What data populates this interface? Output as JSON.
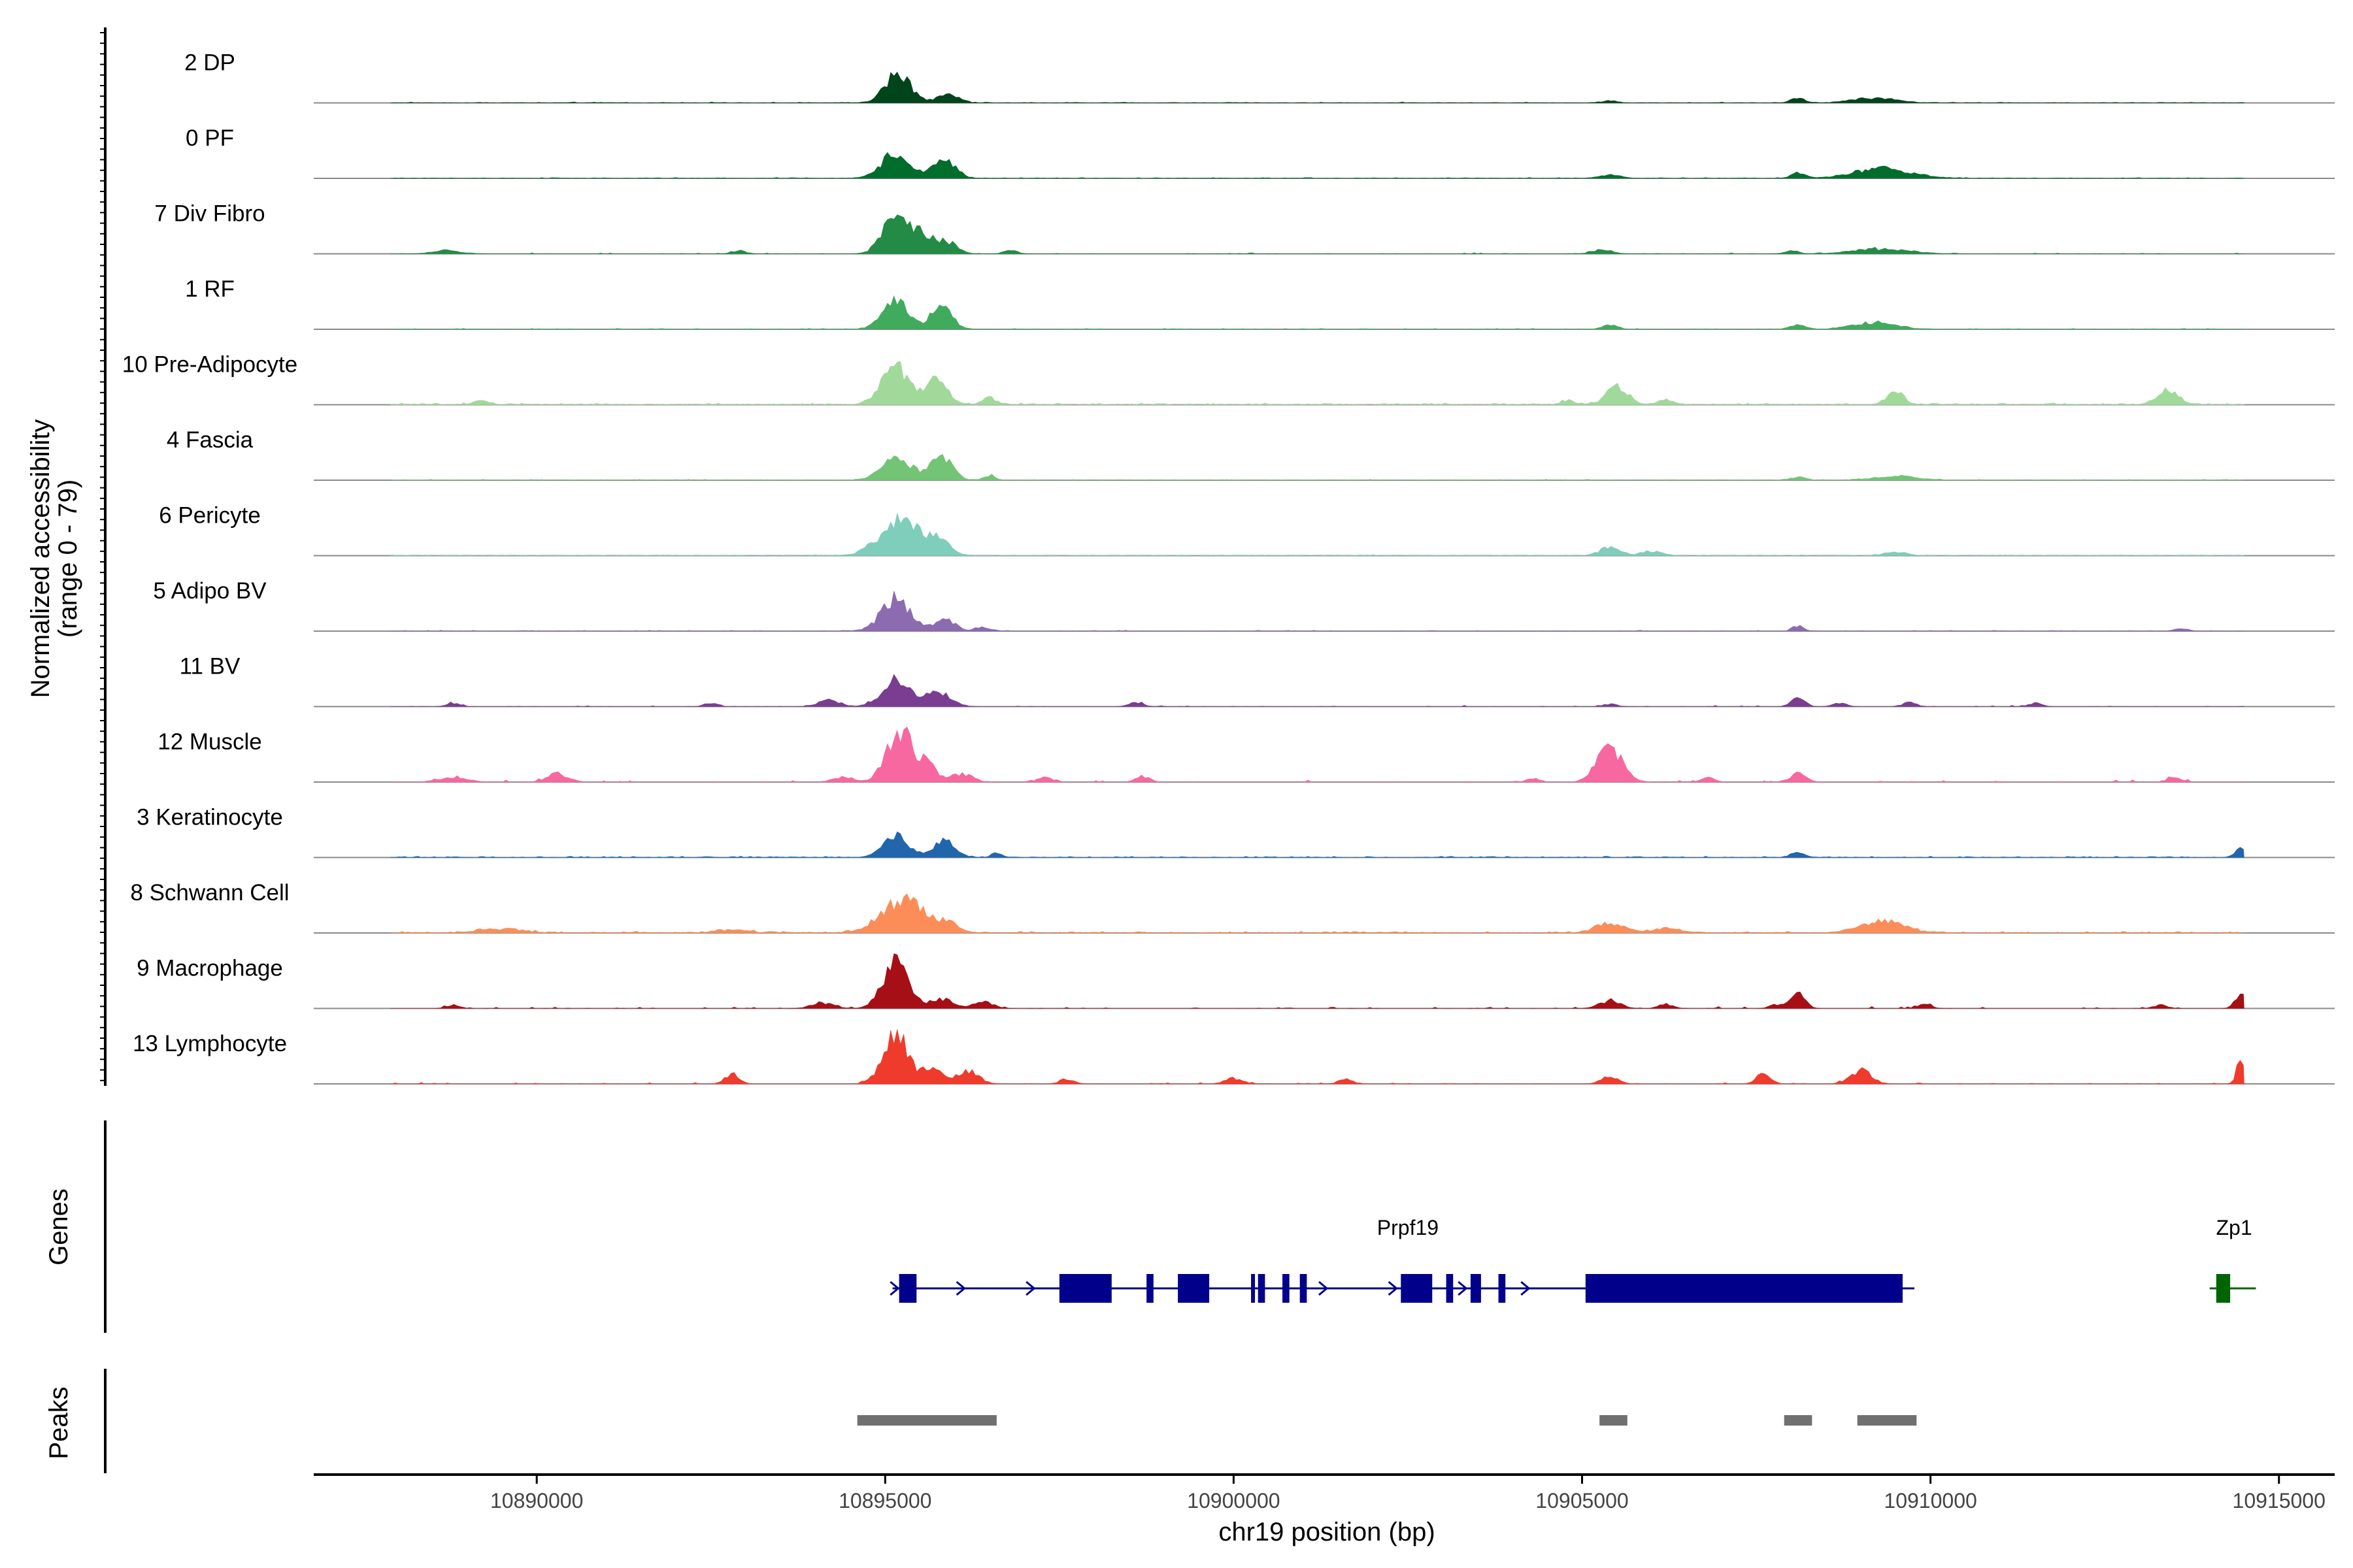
{
  "chart_data": {
    "type": "area",
    "subtype": "genome-coverage-plot",
    "y_axis_title": [
      "Normalized accessibility",
      "(range 0 - 79)"
    ],
    "y_range": [
      0,
      79
    ],
    "x_axis_title": "chr19 position (bp)",
    "x_range": [
      10886800,
      10915800
    ],
    "x_ticks": [
      10890000,
      10895000,
      10900000,
      10905000,
      10910000,
      10915000
    ],
    "x_tick_labels": [
      "10890000",
      "10895000",
      "10900000",
      "10905000",
      "10910000",
      "10915000"
    ],
    "tracks": [
      {
        "name": "2 DP",
        "color": "#00441b",
        "noise": 0.02,
        "sparse": false,
        "peaks": [
          [
            10895180,
            35,
            180
          ],
          [
            10895900,
            10,
            150
          ],
          [
            10908100,
            6,
            100
          ],
          [
            10909200,
            6,
            300
          ],
          [
            10905400,
            3,
            100
          ]
        ]
      },
      {
        "name": "0 PF",
        "color": "#006d2c",
        "noise": 0.02,
        "sparse": false,
        "peaks": [
          [
            10895150,
            30,
            200
          ],
          [
            10895850,
            22,
            160
          ],
          [
            10908100,
            7,
            90
          ],
          [
            10909300,
            12,
            400
          ],
          [
            10905400,
            4,
            150
          ]
        ]
      },
      {
        "name": "7 Div Fibro",
        "color": "#238b45",
        "noise": 0.03,
        "sparse": true,
        "peaks": [
          [
            10895150,
            50,
            180
          ],
          [
            10895550,
            20,
            150
          ],
          [
            10895900,
            14,
            150
          ],
          [
            10896800,
            4,
            100
          ],
          [
            10905300,
            5,
            150
          ],
          [
            10908000,
            4,
            100
          ],
          [
            10909300,
            6,
            400
          ],
          [
            10888700,
            4,
            200
          ],
          [
            10892900,
            4,
            100
          ]
        ]
      },
      {
        "name": "1 RF",
        "color": "#41ab5d",
        "noise": 0.02,
        "sparse": false,
        "peaks": [
          [
            10895150,
            35,
            180
          ],
          [
            10895800,
            28,
            150
          ],
          [
            10905400,
            6,
            100
          ],
          [
            10908100,
            5,
            100
          ],
          [
            10909200,
            8,
            300
          ]
        ]
      },
      {
        "name": "10 Pre-Adipocyte",
        "color": "#a1d99b",
        "noise": 0.04,
        "sparse": false,
        "peaks": [
          [
            10895150,
            45,
            200
          ],
          [
            10895750,
            28,
            150
          ],
          [
            10896500,
            8,
            100
          ],
          [
            10905500,
            22,
            150
          ],
          [
            10909500,
            15,
            120
          ],
          [
            10913400,
            18,
            150
          ],
          [
            10889200,
            5,
            100
          ],
          [
            10906200,
            6,
            100
          ],
          [
            10904800,
            5,
            100
          ]
        ]
      },
      {
        "name": "4 Fascia",
        "color": "#74c476",
        "noise": 0.02,
        "sparse": false,
        "peaks": [
          [
            10895150,
            32,
            200
          ],
          [
            10895800,
            30,
            150
          ],
          [
            10896500,
            6,
            80
          ],
          [
            10908100,
            4,
            100
          ],
          [
            10909500,
            5,
            300
          ]
        ]
      },
      {
        "name": "6 Pericyte",
        "color": "#7fcdbb",
        "noise": 0.02,
        "sparse": false,
        "peaks": [
          [
            10895250,
            45,
            300
          ],
          [
            10895800,
            12,
            150
          ],
          [
            10905400,
            9,
            150
          ],
          [
            10906000,
            5,
            150
          ],
          [
            10909500,
            4,
            150
          ]
        ]
      },
      {
        "name": "5 Adipo BV",
        "color": "#8c6bb1",
        "noise": 0.02,
        "sparse": false,
        "peaks": [
          [
            10895150,
            40,
            200
          ],
          [
            10895850,
            14,
            150
          ],
          [
            10896400,
            5,
            100
          ],
          [
            10908100,
            6,
            80
          ],
          [
            10913600,
            3,
            100
          ]
        ]
      },
      {
        "name": "11 BV",
        "color": "#7a3d91",
        "noise": 0.03,
        "sparse": true,
        "peaks": [
          [
            10895150,
            32,
            200
          ],
          [
            10895700,
            14,
            150
          ],
          [
            10894200,
            8,
            150
          ],
          [
            10895900,
            7,
            150
          ],
          [
            10908100,
            10,
            100
          ],
          [
            10909700,
            5,
            100
          ],
          [
            10898600,
            5,
            100
          ],
          [
            10892500,
            4,
            100
          ],
          [
            10888800,
            4,
            100
          ],
          [
            10911500,
            4,
            100
          ],
          [
            10905400,
            3,
            100
          ],
          [
            10908700,
            4,
            100
          ]
        ]
      },
      {
        "name": "12 Muscle",
        "color": "#f768a1",
        "noise": 0.05,
        "sparse": true,
        "peaks": [
          [
            10895200,
            60,
            180
          ],
          [
            10895600,
            20,
            150
          ],
          [
            10896100,
            10,
            150
          ],
          [
            10905400,
            42,
            180
          ],
          [
            10908100,
            10,
            120
          ],
          [
            10890300,
            10,
            150
          ],
          [
            10888800,
            6,
            200
          ],
          [
            10894400,
            6,
            150
          ],
          [
            10897300,
            6,
            100
          ],
          [
            10898700,
            7,
            100
          ],
          [
            10906800,
            5,
            100
          ],
          [
            10913500,
            5,
            100
          ],
          [
            10904300,
            4,
            100
          ]
        ]
      },
      {
        "name": "3 Keratinocyte",
        "color": "#2166ac",
        "noise": 0.03,
        "sparse": false,
        "peaks": [
          [
            10895150,
            25,
            180
          ],
          [
            10895850,
            20,
            150
          ],
          [
            10896600,
            5,
            80
          ],
          [
            10914450,
            12,
            80
          ],
          [
            10908100,
            5,
            100
          ]
        ]
      },
      {
        "name": "8 Schwann Cell",
        "color": "#fc8d59",
        "noise": 0.04,
        "sparse": false,
        "peaks": [
          [
            10895250,
            40,
            300
          ],
          [
            10895900,
            10,
            150
          ],
          [
            10905400,
            12,
            200
          ],
          [
            10909300,
            14,
            300
          ],
          [
            10906200,
            5,
            200
          ],
          [
            10889500,
            5,
            300
          ],
          [
            10892800,
            4,
            200
          ]
        ]
      },
      {
        "name": "9 Macrophage",
        "color": "#a50f15",
        "noise": 0.05,
        "sparse": true,
        "peaks": [
          [
            10895150,
            60,
            180
          ],
          [
            10895800,
            12,
            150
          ],
          [
            10896400,
            8,
            150
          ],
          [
            10894100,
            7,
            150
          ],
          [
            10908100,
            18,
            100
          ],
          [
            10914450,
            18,
            80
          ],
          [
            10905400,
            9,
            150
          ],
          [
            10906200,
            5,
            100
          ],
          [
            10907800,
            5,
            100
          ],
          [
            10909900,
            5,
            100
          ],
          [
            10888800,
            4,
            100
          ],
          [
            10913300,
            4,
            100
          ]
        ]
      },
      {
        "name": "13 Lymphocyte",
        "color": "#ef3b2c",
        "noise": 0.04,
        "sparse": true,
        "peaks": [
          [
            10895150,
            60,
            180
          ],
          [
            10895700,
            20,
            150
          ],
          [
            10896200,
            15,
            150
          ],
          [
            10892800,
            12,
            100
          ],
          [
            10914450,
            28,
            60
          ],
          [
            10909000,
            16,
            150
          ],
          [
            10905400,
            9,
            120
          ],
          [
            10907600,
            12,
            100
          ],
          [
            10897600,
            6,
            100
          ],
          [
            10900000,
            7,
            120
          ],
          [
            10901600,
            6,
            100
          ]
        ]
      }
    ],
    "genes_title": "Genes",
    "genes": [
      {
        "name": "Prpf19",
        "start": 10895200,
        "end": 10909600,
        "strand": "+",
        "color": "#00008b",
        "exons": [
          [
            10895200,
            10895450
          ],
          [
            10897500,
            10898250
          ],
          [
            10898750,
            10898850
          ],
          [
            10899200,
            10899650
          ],
          [
            10900250,
            10900300
          ],
          [
            10900350,
            10900450
          ],
          [
            10900700,
            10900800
          ],
          [
            10900950,
            10901050
          ],
          [
            10902400,
            10902850
          ],
          [
            10903050,
            10903150
          ],
          [
            10903400,
            10903550
          ],
          [
            10903800,
            10903900
          ],
          [
            10905050,
            10909600
          ]
        ],
        "arrows": [
          10895150,
          10896100,
          10897100,
          10901300,
          10902300,
          10903300,
          10904200
        ]
      },
      {
        "name": "Zp1",
        "start": 10914100,
        "end": 10914500,
        "strand": "+",
        "color": "#006400",
        "exons": [
          [
            10914100,
            10914300
          ]
        ],
        "arrows": []
      }
    ],
    "peaks_title": "Peaks",
    "peaks_color": "#707070",
    "peak_regions": [
      [
        10894600,
        10896600
      ],
      [
        10905250,
        10905650
      ],
      [
        10907900,
        10908300
      ],
      [
        10908950,
        10909800
      ]
    ]
  }
}
